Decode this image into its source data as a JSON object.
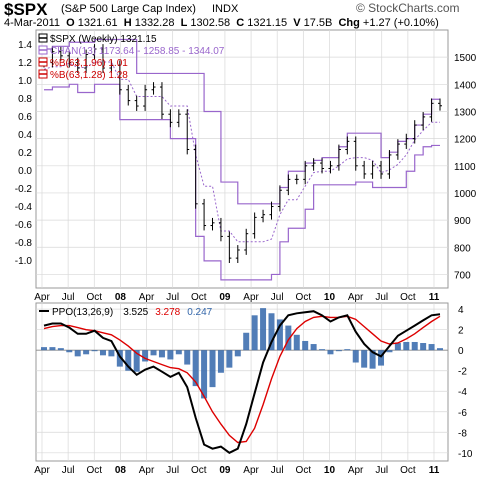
{
  "header": {
    "symbol": "$SPX",
    "name": "(S&P 500 Large Cap Index)",
    "exchange": "INDX",
    "date": "4-Mar-2011",
    "open_label": "O",
    "open": "1321.61",
    "high_label": "H",
    "high": "1332.28",
    "low_label": "L",
    "low": "1302.58",
    "close_label": "C",
    "close": "1321.15",
    "volume_label": "V",
    "volume": "17.5B",
    "change_label": "Chg",
    "change": "+1.27 (+0.10%)",
    "logo": "© StockCharts.com"
  },
  "colors": {
    "price": "#000000",
    "channel": "#9966cc",
    "percent_b": "#cc0000",
    "ppo_line": "#000000",
    "ppo_signal": "#dd0000",
    "ppo_hist": "#3366aa",
    "grid": "#d8d8d8"
  },
  "chart_data": [
    {
      "type": "line",
      "panel": "price",
      "legend": [
        {
          "label": "$SPX (Weekly) 1321.15",
          "color": "#000000"
        },
        {
          "label": "CHAN(13) 1173.64 - 1258.85 - 1344.07",
          "color": "#9966cc"
        },
        {
          "label": "%B(63,1.96) 1.01",
          "color": "#cc0000"
        },
        {
          "label": "%B(63,1.28) 1.28",
          "color": "#cc0000"
        }
      ],
      "x": [
        "2007-04",
        "2007-05",
        "2007-06",
        "2007-07",
        "2007-08",
        "2007-09",
        "2007-10",
        "2007-11",
        "2007-12",
        "2008-01",
        "2008-02",
        "2008-03",
        "2008-04",
        "2008-05",
        "2008-06",
        "2008-07",
        "2008-08",
        "2008-09",
        "2008-10",
        "2008-11",
        "2008-12",
        "2009-01",
        "2009-02",
        "2009-03",
        "2009-04",
        "2009-05",
        "2009-06",
        "2009-07",
        "2009-08",
        "2009-09",
        "2009-10",
        "2009-11",
        "2009-12",
        "2010-01",
        "2010-02",
        "2010-03",
        "2010-04",
        "2010-05",
        "2010-06",
        "2010-07",
        "2010-08",
        "2010-09",
        "2010-10",
        "2010-11",
        "2010-12",
        "2011-01",
        "2011-02",
        "2011-03"
      ],
      "series": [
        {
          "name": "$SPX (Weekly)",
          "values": [
            1480,
            1520,
            1505,
            1480,
            1460,
            1510,
            1530,
            1460,
            1470,
            1380,
            1340,
            1320,
            1380,
            1390,
            1290,
            1260,
            1290,
            1160,
            960,
            880,
            890,
            840,
            760,
            790,
            850,
            910,
            920,
            950,
            1010,
            1050,
            1050,
            1100,
            1110,
            1090,
            1100,
            1160,
            1190,
            1100,
            1070,
            1100,
            1070,
            1140,
            1180,
            1200,
            1250,
            1280,
            1330,
            1321
          ]
        },
        {
          "name": "CHAN(13) upper",
          "values": [
            1530,
            1540,
            1540,
            1555,
            1555,
            1555,
            1565,
            1565,
            1565,
            1565,
            1565,
            1440,
            1440,
            1440,
            1440,
            1440,
            1440,
            1440,
            1440,
            1300,
            1300,
            1040,
            1040,
            960,
            960,
            960,
            960,
            960,
            1020,
            1080,
            1080,
            1110,
            1120,
            1130,
            1130,
            1170,
            1220,
            1220,
            1220,
            1220,
            1130,
            1150,
            1190,
            1200,
            1250,
            1290,
            1345,
            1345
          ]
        },
        {
          "name": "CHAN(13) lower",
          "values": [
            1380,
            1390,
            1390,
            1400,
            1370,
            1370,
            1400,
            1400,
            1400,
            1270,
            1270,
            1270,
            1270,
            1270,
            1270,
            1200,
            1200,
            1200,
            840,
            750,
            750,
            680,
            680,
            680,
            680,
            680,
            680,
            700,
            820,
            870,
            870,
            940,
            1030,
            1030,
            1030,
            1030,
            1030,
            1040,
            1040,
            1020,
            1020,
            1020,
            1020,
            1080,
            1140,
            1170,
            1175,
            1175
          ]
        },
        {
          "name": "CHAN(13) middle",
          "values": [
            1455,
            1465,
            1465,
            1478,
            1462,
            1462,
            1482,
            1482,
            1482,
            1418,
            1418,
            1355,
            1355,
            1355,
            1355,
            1320,
            1320,
            1320,
            1140,
            1025,
            1025,
            860,
            860,
            820,
            820,
            820,
            820,
            830,
            920,
            975,
            975,
            1025,
            1075,
            1080,
            1080,
            1100,
            1125,
            1130,
            1130,
            1120,
            1075,
            1085,
            1105,
            1140,
            1195,
            1230,
            1260,
            1260
          ]
        }
      ],
      "y_left_ticks": [
        1.4,
        1.2,
        1.0,
        0.8,
        0.6,
        0.4,
        0.2,
        0.0,
        -0.2,
        -0.4,
        -0.6,
        -0.8,
        -1.0
      ],
      "y_right_ticks": [
        1500,
        1400,
        1300,
        1200,
        1100,
        1000,
        900,
        800,
        700
      ],
      "ylim": [
        650,
        1600
      ],
      "x_tick_labels": [
        "Apr",
        "Jul",
        "Oct",
        "08",
        "Apr",
        "Jul",
        "Oct",
        "09",
        "Apr",
        "Jul",
        "Oct",
        "10",
        "Apr",
        "Jul",
        "Oct",
        "11"
      ],
      "grid": true
    },
    {
      "type": "bar",
      "panel": "ppo",
      "legend": [
        {
          "label": "PPO(13,26,9)",
          "color": "#000000"
        },
        {
          "label": "3.525",
          "color": "#000000"
        },
        {
          "label": "3.278",
          "color": "#dd0000"
        },
        {
          "label": "0.247",
          "color": "#3366aa"
        }
      ],
      "series": [
        {
          "name": "PPO(13,26,9)",
          "values": [
            2.4,
            2.6,
            2.6,
            2.2,
            1.6,
            1.6,
            1.9,
            1.2,
            0.9,
            -0.6,
            -1.6,
            -2.4,
            -1.9,
            -1.6,
            -2.1,
            -2.6,
            -2.2,
            -3.6,
            -6.6,
            -9.2,
            -9.6,
            -9.4,
            -10.0,
            -9.6,
            -7.2,
            -4.2,
            -1.2,
            0.8,
            2.4,
            3.4,
            3.6,
            3.7,
            3.8,
            3.4,
            2.8,
            3.2,
            3.4,
            1.8,
            0.6,
            -0.2,
            -0.6,
            0.4,
            1.4,
            1.9,
            2.4,
            2.9,
            3.4,
            3.5
          ]
        },
        {
          "name": "Signal",
          "values": [
            2.1,
            2.3,
            2.4,
            2.4,
            2.2,
            2.0,
            1.9,
            1.7,
            1.5,
            1.0,
            0.4,
            -0.3,
            -0.8,
            -1.1,
            -1.4,
            -1.7,
            -1.8,
            -2.2,
            -3.1,
            -4.5,
            -6.0,
            -7.2,
            -8.3,
            -9.0,
            -8.9,
            -7.6,
            -5.3,
            -2.8,
            -0.6,
            1.0,
            2.1,
            2.8,
            3.2,
            3.3,
            3.2,
            3.2,
            3.3,
            3.0,
            2.3,
            1.6,
            0.9,
            0.6,
            0.7,
            1.1,
            1.6,
            2.2,
            2.8,
            3.3
          ]
        },
        {
          "name": "Histogram",
          "values": [
            0.3,
            0.3,
            0.2,
            -0.2,
            -0.6,
            -0.4,
            0.0,
            -0.5,
            -0.6,
            -1.6,
            -2.0,
            -2.1,
            -1.1,
            -0.5,
            -0.7,
            -0.9,
            -0.4,
            -1.4,
            -3.5,
            -4.7,
            -3.6,
            -2.2,
            -1.7,
            -0.6,
            1.7,
            3.4,
            4.1,
            3.6,
            3.0,
            2.4,
            1.5,
            0.9,
            0.6,
            0.1,
            -0.4,
            0.0,
            0.1,
            -1.2,
            -1.7,
            -1.8,
            -1.5,
            -0.2,
            0.7,
            0.8,
            0.8,
            0.7,
            0.6,
            0.2
          ]
        }
      ],
      "y_right_ticks": [
        4,
        2,
        0,
        -2,
        -4,
        -6,
        -8,
        -10
      ],
      "ylim": [
        -10.8,
        4.6
      ],
      "x_tick_labels": [
        "Apr",
        "Jul",
        "Oct",
        "08",
        "Apr",
        "Jul",
        "Oct",
        "09",
        "Apr",
        "Jul",
        "Oct",
        "10",
        "Apr",
        "Jul",
        "Oct",
        "11"
      ],
      "grid": true
    }
  ]
}
